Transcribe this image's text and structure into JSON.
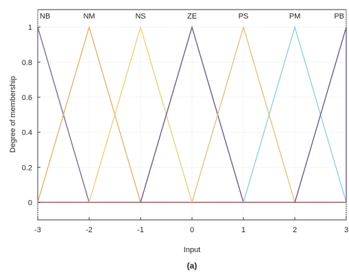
{
  "chart_data": {
    "type": "line",
    "xlabel": "Input",
    "ylabel": "Degree of membership",
    "caption": "(a)",
    "xlim": [
      -3,
      3
    ],
    "ylim": [
      -0.1,
      1.1
    ],
    "xticks": [
      -3,
      -2,
      -1,
      0,
      1,
      2,
      3
    ],
    "yticks": [
      0,
      0.2,
      0.4,
      0.6,
      0.8,
      1
    ],
    "grid": true,
    "series": [
      {
        "name": "NB",
        "x": [
          -3,
          -3,
          -2
        ],
        "y": [
          0,
          1,
          0
        ],
        "color": "#7b6a8f"
      },
      {
        "name": "NM",
        "x": [
          -3,
          -2,
          -1
        ],
        "y": [
          0,
          1,
          0
        ],
        "color": "#e6b06a"
      },
      {
        "name": "NS",
        "x": [
          -2,
          -1,
          0
        ],
        "y": [
          0,
          1,
          0
        ],
        "color": "#e8d27a"
      },
      {
        "name": "ZE",
        "x": [
          -1,
          0,
          1
        ],
        "y": [
          0,
          1,
          0
        ],
        "color": "#6b5a86"
      },
      {
        "name": "PS",
        "x": [
          0,
          1,
          2
        ],
        "y": [
          0,
          1,
          0
        ],
        "color": "#e7c07a"
      },
      {
        "name": "PM",
        "x": [
          1,
          2,
          3
        ],
        "y": [
          0,
          1,
          0
        ],
        "color": "#8fd0e0"
      },
      {
        "name": "PB",
        "x": [
          2,
          3,
          3
        ],
        "y": [
          0,
          1,
          0
        ],
        "color": "#6a5a88"
      }
    ]
  }
}
